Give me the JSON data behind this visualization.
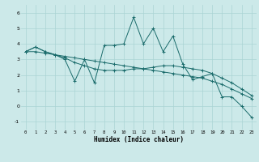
{
  "xlabel": "Humidex (Indice chaleur)",
  "background_color": "#cce9e9",
  "grid_color": "#aad4d4",
  "line_color": "#1a6b6b",
  "x_ticks": [
    0,
    1,
    2,
    3,
    4,
    5,
    6,
    7,
    8,
    9,
    10,
    11,
    12,
    13,
    14,
    15,
    16,
    17,
    18,
    19,
    20,
    21,
    22,
    23
  ],
  "ylim": [
    -1.5,
    6.5
  ],
  "xlim": [
    -0.5,
    23.5
  ],
  "yticks": [
    -1,
    0,
    1,
    2,
    3,
    4,
    5,
    6
  ],
  "series": [
    [
      3.5,
      3.8,
      3.5,
      3.3,
      3.0,
      1.6,
      3.0,
      1.5,
      3.9,
      3.9,
      4.0,
      5.7,
      4.0,
      5.0,
      3.5,
      4.5,
      2.7,
      1.7,
      1.9,
      2.1,
      0.6,
      0.6,
      0.0,
      -0.7
    ],
    [
      3.5,
      3.8,
      3.5,
      3.3,
      3.1,
      2.8,
      2.6,
      2.4,
      2.3,
      2.3,
      2.3,
      2.4,
      2.4,
      2.5,
      2.6,
      2.6,
      2.5,
      2.4,
      2.3,
      2.1,
      1.8,
      1.5,
      1.1,
      0.7
    ],
    [
      3.5,
      3.5,
      3.4,
      3.3,
      3.2,
      3.1,
      3.0,
      2.9,
      2.8,
      2.7,
      2.6,
      2.5,
      2.4,
      2.3,
      2.2,
      2.1,
      2.0,
      1.9,
      1.8,
      1.6,
      1.4,
      1.1,
      0.8,
      0.5
    ]
  ]
}
